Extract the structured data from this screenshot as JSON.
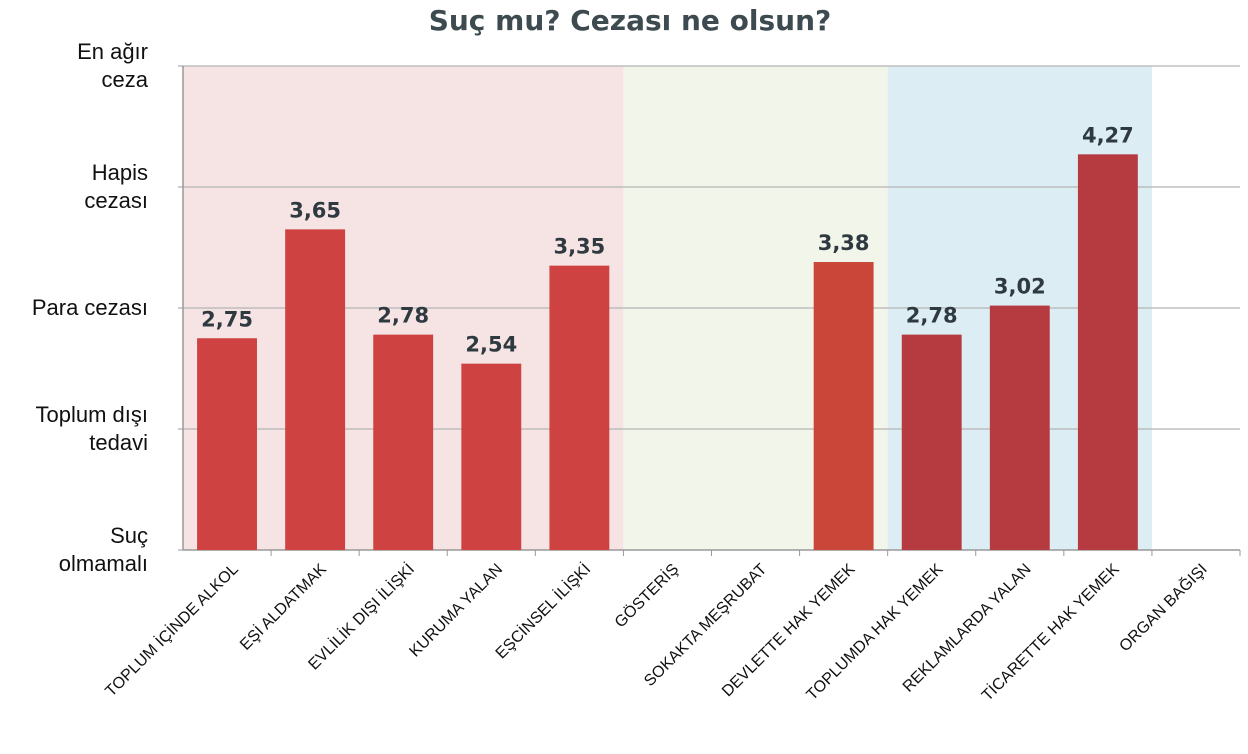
{
  "chart_data": {
    "type": "bar",
    "title": "Suç mu? Cezası ne olsun?",
    "categories": [
      "TOPLUM İÇİNDE ALKOL",
      "EŞİ ALDATMAK",
      "EVLİLİK DIŞI İLİŞKİ",
      "KURUMA YALAN",
      "EŞCİNSEL İLİŞKİ",
      "GÖSTERİŞ",
      "SOKAKTA MEŞRUBAT",
      "DEVLETTE HAK YEMEK",
      "TOPLUMDA HAK YEMEK",
      "REKLAMLARDA YALAN",
      "TİCARETTE HAK YEMEK",
      "ORGAN BAĞIŞI"
    ],
    "values": [
      2.75,
      3.65,
      2.78,
      2.54,
      3.35,
      null,
      null,
      3.38,
      2.78,
      3.02,
      4.27,
      null
    ],
    "value_labels": [
      "2,75",
      "3,65",
      "2,78",
      "2,54",
      "3,35",
      null,
      null,
      "3,38",
      "2,78",
      "3,02",
      "4,27",
      null
    ],
    "colors": [
      "#cf4242",
      "#cf4242",
      "#cf4242",
      "#cf4242",
      "#cf4242",
      "#cf4242",
      "#cf4242",
      "#c94638",
      "#b63b40",
      "#b63b40",
      "#b63b40",
      "#b63b40"
    ],
    "ylim": [
      1,
      5
    ],
    "yticks": [
      {
        "value": 1,
        "label": "Suç olmamalı"
      },
      {
        "value": 2,
        "label": "Toplum dışı tedavi"
      },
      {
        "value": 3,
        "label": "Para cezası"
      },
      {
        "value": 4,
        "label": "Hapis cezası"
      },
      {
        "value": 5,
        "label": "En ağır ceza"
      }
    ],
    "grid": true
  }
}
